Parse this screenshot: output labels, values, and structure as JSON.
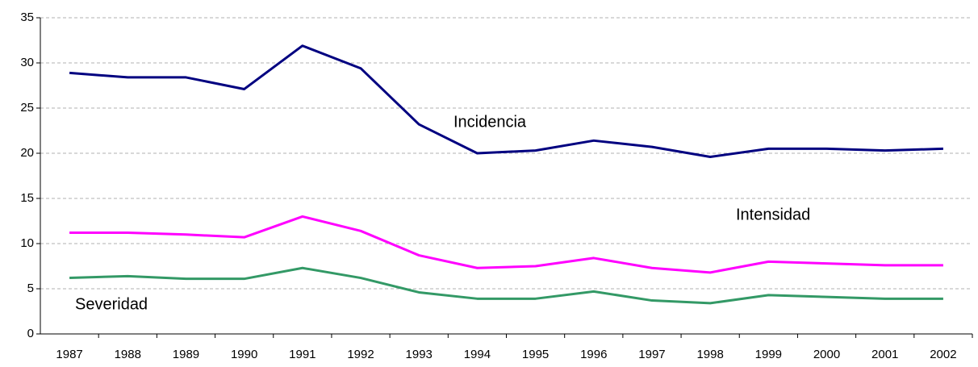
{
  "chart_data": {
    "type": "line",
    "categories": [
      "1987",
      "1988",
      "1989",
      "1990",
      "1991",
      "1992",
      "1993",
      "1994",
      "1995",
      "1996",
      "1997",
      "1998",
      "1999",
      "2000",
      "2001",
      "2002"
    ],
    "series": [
      {
        "name": "Incidencia",
        "color": "#000080",
        "values": [
          28.9,
          28.4,
          28.4,
          27.1,
          31.9,
          29.4,
          23.2,
          20.0,
          20.3,
          21.4,
          20.7,
          19.6,
          20.5,
          20.5,
          20.3,
          20.5
        ]
      },
      {
        "name": "Intensidad",
        "color": "#ff00ff",
        "values": [
          11.2,
          11.2,
          11.0,
          10.7,
          13.0,
          11.4,
          8.7,
          7.3,
          7.5,
          8.4,
          7.3,
          6.8,
          8.0,
          7.8,
          7.6,
          7.6
        ]
      },
      {
        "name": "Severidad",
        "color": "#339966",
        "values": [
          6.2,
          6.4,
          6.1,
          6.1,
          7.3,
          6.2,
          4.6,
          3.9,
          3.9,
          4.7,
          3.7,
          3.4,
          4.3,
          4.1,
          3.9,
          3.9
        ]
      }
    ],
    "ylim": [
      0,
      35
    ],
    "yticks": [
      0,
      5,
      10,
      15,
      20,
      25,
      30,
      35
    ],
    "grid": true
  }
}
